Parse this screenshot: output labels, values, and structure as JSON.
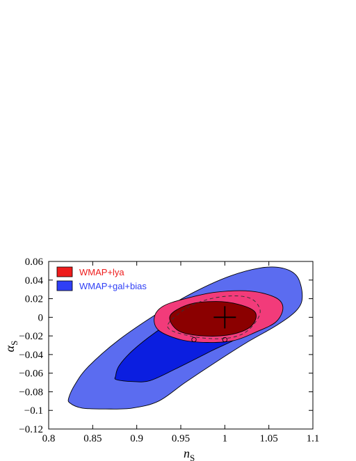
{
  "chart_data": {
    "type": "contour",
    "xlabel": "n",
    "xlabel_sub": "S",
    "ylabel": "α",
    "ylabel_sub": "S",
    "xlim": [
      0.8,
      1.1
    ],
    "ylim": [
      -0.12,
      0.06
    ],
    "xticks": [
      {
        "value": 0.8,
        "label": "0.8"
      },
      {
        "value": 0.85,
        "label": "0.85"
      },
      {
        "value": 0.9,
        "label": "0.9"
      },
      {
        "value": 0.95,
        "label": "0.95"
      },
      {
        "value": 1.0,
        "label": "1"
      },
      {
        "value": 1.05,
        "label": "1.05"
      },
      {
        "value": 1.1,
        "label": "1.1"
      }
    ],
    "yticks": [
      {
        "value": 0.06,
        "label": "0.06"
      },
      {
        "value": 0.04,
        "label": "0.04"
      },
      {
        "value": 0.02,
        "label": "0.02"
      },
      {
        "value": 0.0,
        "label": "0"
      },
      {
        "value": -0.02,
        "label": "−0.02"
      },
      {
        "value": -0.04,
        "label": "−0.04"
      },
      {
        "value": -0.06,
        "label": "−0.06"
      },
      {
        "value": -0.08,
        "label": "−0.08"
      },
      {
        "value": -0.1,
        "label": "−0.1"
      },
      {
        "value": -0.12,
        "label": "−0.12"
      }
    ],
    "legend": {
      "position": "top-left",
      "entries": [
        {
          "label": "WMAP+lya",
          "color": "#ee1c1c",
          "text_color": "#ee1c1c"
        },
        {
          "label": "WMAP+gal+bias",
          "color": "#2f3ff5",
          "text_color": "#2f3ff5"
        }
      ]
    },
    "regions": [
      {
        "name": "wmap-gal-bias-95",
        "fill": "#5b6cf0",
        "points": [
          [
            0.823,
            -0.086
          ],
          [
            0.824,
            -0.092
          ],
          [
            0.838,
            -0.0975
          ],
          [
            0.865,
            -0.0985
          ],
          [
            0.895,
            -0.0975
          ],
          [
            0.925,
            -0.09
          ],
          [
            0.955,
            -0.07
          ],
          [
            0.99,
            -0.048
          ],
          [
            1.025,
            -0.027
          ],
          [
            1.06,
            -0.008
          ],
          [
            1.082,
            0.008
          ],
          [
            1.088,
            0.023
          ],
          [
            1.082,
            0.044
          ],
          [
            1.065,
            0.053
          ],
          [
            1.04,
            0.053
          ],
          [
            1.005,
            0.044
          ],
          [
            0.965,
            0.027
          ],
          [
            0.925,
            0.005
          ],
          [
            0.88,
            -0.024
          ],
          [
            0.845,
            -0.053
          ],
          [
            0.83,
            -0.072
          ]
        ]
      },
      {
        "name": "wmap-gal-bias-68",
        "fill": "#0b1ee0",
        "points": [
          [
            0.876,
            -0.063
          ],
          [
            0.877,
            -0.067
          ],
          [
            0.895,
            -0.069
          ],
          [
            0.915,
            -0.068
          ],
          [
            0.945,
            -0.055
          ],
          [
            0.985,
            -0.036
          ],
          [
            1.02,
            -0.019
          ],
          [
            1.038,
            0.003
          ],
          [
            1.035,
            0.02
          ],
          [
            1.015,
            0.027
          ],
          [
            0.99,
            0.02
          ],
          [
            0.955,
            0.005
          ],
          [
            0.92,
            -0.017
          ],
          [
            0.895,
            -0.036
          ],
          [
            0.88,
            -0.052
          ]
        ]
      },
      {
        "name": "wmap-lya-95",
        "fill": "#f23b7a",
        "points": [
          [
            0.92,
            0.0
          ],
          [
            0.925,
            -0.014
          ],
          [
            0.95,
            -0.024
          ],
          [
            0.98,
            -0.027
          ],
          [
            1.01,
            -0.025
          ],
          [
            1.035,
            -0.016
          ],
          [
            1.058,
            -0.005
          ],
          [
            1.066,
            0.01
          ],
          [
            1.058,
            0.021
          ],
          [
            1.03,
            0.028
          ],
          [
            0.99,
            0.027
          ],
          [
            0.955,
            0.02
          ],
          [
            0.93,
            0.012
          ]
        ]
      },
      {
        "name": "wmap-lya-68",
        "fill": "#8b0000",
        "points": [
          [
            0.938,
            0.002
          ],
          [
            0.945,
            -0.013
          ],
          [
            0.965,
            -0.019
          ],
          [
            0.995,
            -0.02
          ],
          [
            1.02,
            -0.015
          ],
          [
            1.033,
            -0.006
          ],
          [
            1.034,
            0.006
          ],
          [
            1.015,
            0.014
          ],
          [
            0.99,
            0.017
          ],
          [
            0.96,
            0.014
          ]
        ]
      }
    ],
    "dashed_contour": [
      [
        0.935,
        -0.01
      ],
      [
        0.96,
        -0.02
      ],
      [
        0.995,
        -0.023
      ],
      [
        1.02,
        -0.018
      ],
      [
        1.035,
        -0.005
      ],
      [
        1.04,
        0.008
      ],
      [
        1.03,
        0.02
      ],
      [
        1.008,
        0.023
      ],
      [
        0.98,
        0.019
      ],
      [
        0.955,
        0.009
      ]
    ],
    "markers": [
      {
        "type": "plus",
        "x": 1.0,
        "y": 0.0
      },
      {
        "type": "circle",
        "x": 0.965,
        "y": -0.024
      },
      {
        "type": "circle",
        "x": 1.0,
        "y": -0.024
      }
    ]
  }
}
